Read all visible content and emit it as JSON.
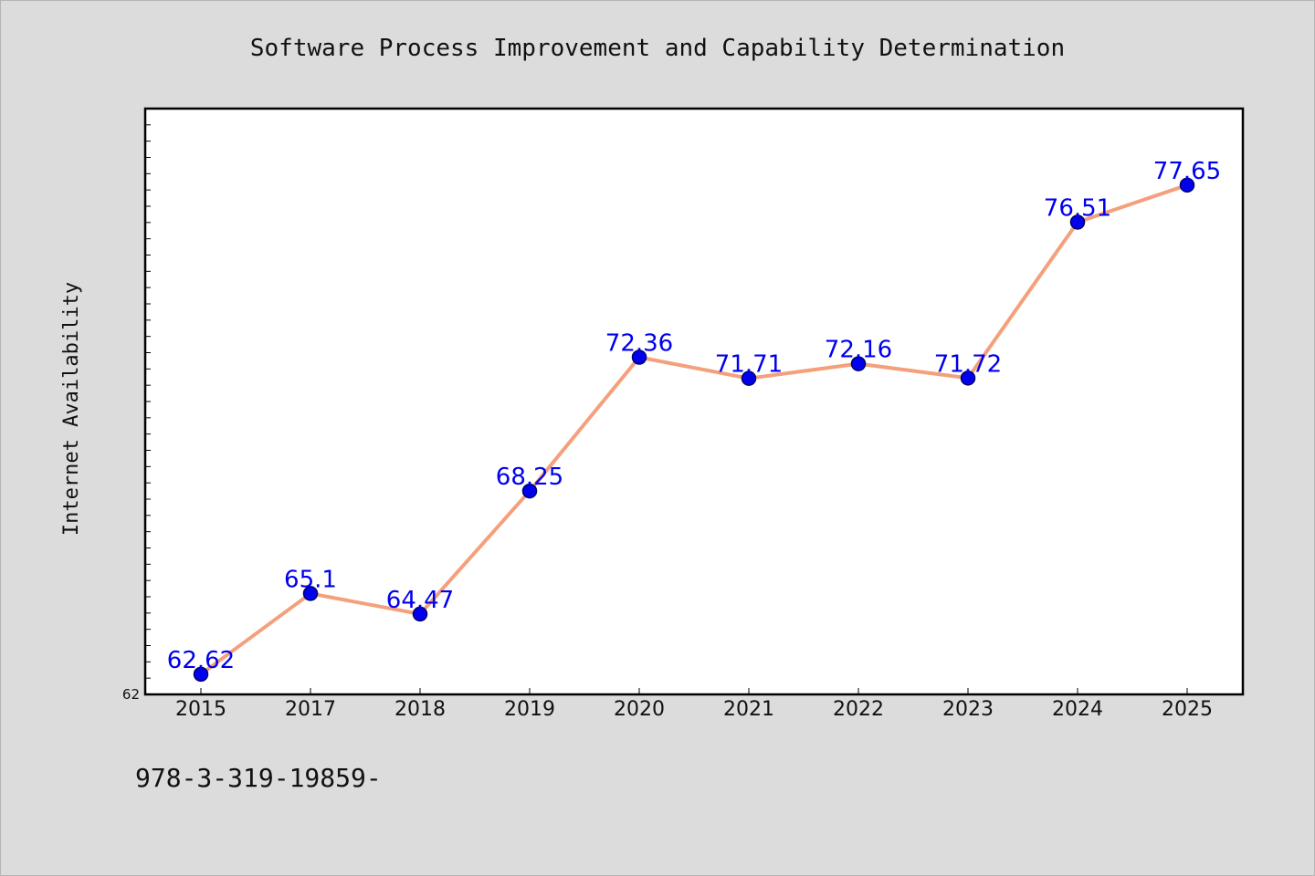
{
  "chart_data": {
    "type": "line",
    "title": "Software Process Improvement and Capability Determination",
    "xlabel": "",
    "ylabel": "Internet Availability",
    "categories": [
      "2015",
      "2017",
      "2018",
      "2019",
      "2020",
      "2021",
      "2022",
      "2023",
      "2024",
      "2025"
    ],
    "series": [
      {
        "values": [
          62.62,
          65.1,
          64.47,
          68.25,
          72.36,
          71.71,
          72.16,
          71.72,
          76.51,
          77.65
        ],
        "labels": [
          "62.62",
          "65.1",
          "64.47",
          "68.25",
          "72.36",
          "71.71",
          "72.16",
          "71.72",
          "76.51",
          "77.65"
        ]
      }
    ],
    "ylim": [
      62,
      80
    ],
    "yticks_labeled": [
      "62"
    ],
    "grid": false,
    "legend": "none",
    "colors": {
      "line": "#f4a07c",
      "marker": "#0000ee",
      "marker_edge": "#000066",
      "label": "#0000ee",
      "plot_bg": "#ffffff",
      "page_bg": "#dcdcdc"
    }
  },
  "footnote": "978-3-319-19859-"
}
